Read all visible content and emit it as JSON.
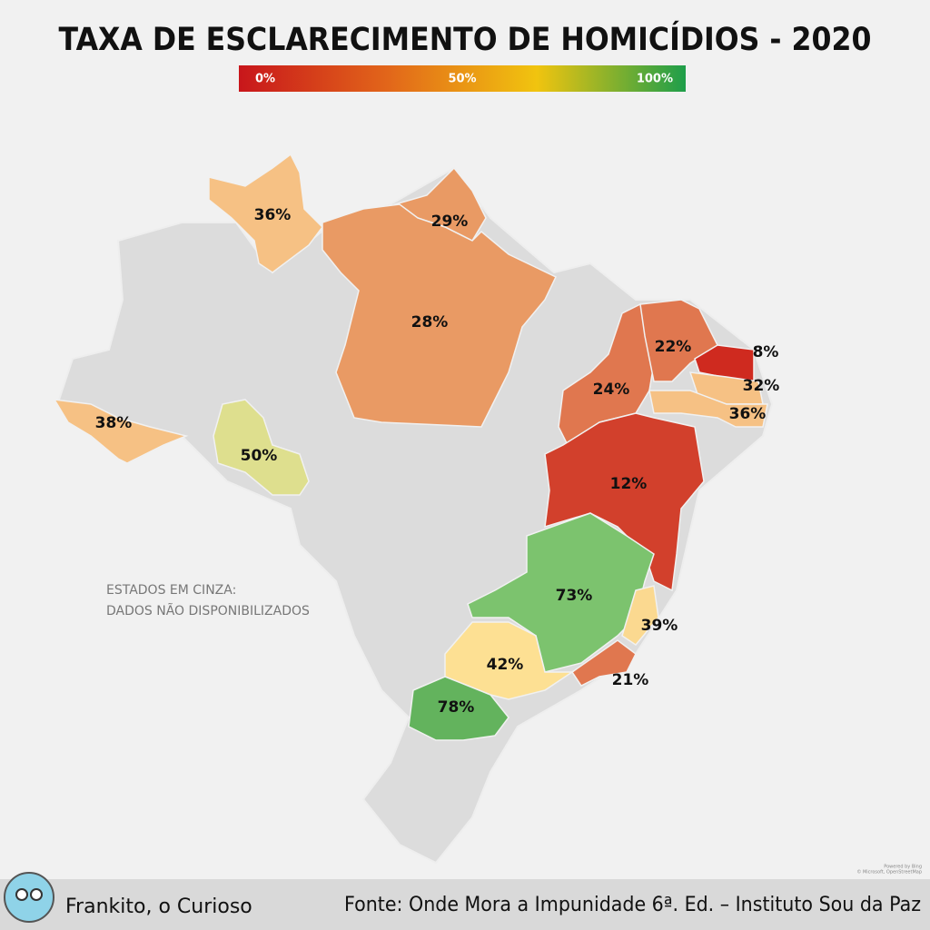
{
  "chart_data": {
    "type": "choropleth",
    "title": "TAXA DE ESCLARECIMENTO DE HOMICÍDIOS - 2020",
    "colorscale": [
      "#c8161b",
      "#e2661a",
      "#f1c40f",
      "#1e9e4a"
    ],
    "clim": [
      0,
      100
    ],
    "cticks": [
      {
        "value": 0,
        "label": "0%"
      },
      {
        "value": 50,
        "label": "50%"
      },
      {
        "value": 100,
        "label": "100%"
      }
    ],
    "values": [
      36,
      29,
      28,
      38,
      50,
      24,
      22,
      8,
      32,
      36,
      12,
      73,
      39,
      21,
      42,
      78
    ],
    "value_labels": [
      "36%",
      "29%",
      "28%",
      "38%",
      "50%",
      "24%",
      "22%",
      "8%",
      "32%",
      "36%",
      "12%",
      "73%",
      "39%",
      "21%",
      "42%",
      "78%"
    ],
    "colors": [
      "#f6c184",
      "#e99a64",
      "#e99a64",
      "#f6c184",
      "#dedf8e",
      "#e0774f",
      "#e0774f",
      "#cf2a1f",
      "#f6c184",
      "#f6c184",
      "#d2402c",
      "#7cc36e",
      "#fbd990",
      "#e0774f",
      "#fde093",
      "#63b35d"
    ],
    "note": [
      "ESTADOS EM CINZA:",
      "DADOS NÃO DISPONIBILIZADOS"
    ],
    "attribution": [
      "Powered by Bing",
      "© Microsoft, OpenStreetMap"
    ]
  },
  "footer": {
    "author": "Frankito, o Curioso",
    "source": "Fonte: Onde Mora a Impunidade 6ª. Ed. – Instituto Sou da Paz"
  }
}
